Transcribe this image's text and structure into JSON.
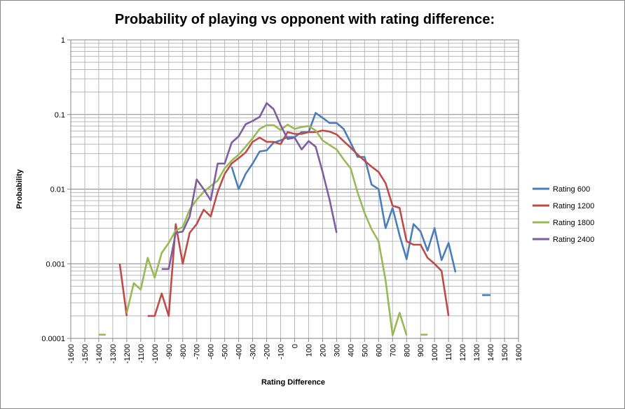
{
  "chart_data": {
    "type": "line",
    "title": "Probability of playing vs opponent with rating difference:",
    "xlabel": "Rating Difference",
    "ylabel": "Probability",
    "y_scale": "log",
    "ylim": [
      0.0001,
      1
    ],
    "xlim": [
      -1600,
      1600
    ],
    "x_ticks": [
      -1600,
      -1500,
      -1400,
      -1300,
      -1200,
      -1100,
      -1000,
      -900,
      -800,
      -700,
      -600,
      -500,
      -400,
      -300,
      -200,
      -100,
      0,
      100,
      200,
      300,
      400,
      500,
      600,
      700,
      800,
      900,
      1000,
      1100,
      1200,
      1300,
      1400,
      1500,
      1600
    ],
    "y_ticks": [
      {
        "value": 1,
        "label": "1"
      },
      {
        "value": 0.1,
        "label": "0.1"
      },
      {
        "value": 0.01,
        "label": "0.01"
      },
      {
        "value": 0.001,
        "label": "0.001"
      },
      {
        "value": 0.0001,
        "label": "0.0001"
      }
    ],
    "grid": true,
    "legend": "right",
    "series": [
      {
        "name": "Rating 600",
        "color": "#4a7ebb",
        "segments": [
          [
            [
              -450,
              0.02
            ],
            [
              -400,
              0.01
            ],
            [
              -350,
              0.016
            ],
            [
              -300,
              0.022
            ],
            [
              -250,
              0.032
            ],
            [
              -200,
              0.033
            ],
            [
              -150,
              0.042
            ],
            [
              -100,
              0.045
            ],
            [
              -50,
              0.05
            ],
            [
              0,
              0.05
            ],
            [
              50,
              0.058
            ],
            [
              100,
              0.058
            ],
            [
              150,
              0.105
            ],
            [
              200,
              0.09
            ],
            [
              250,
              0.077
            ],
            [
              300,
              0.077
            ],
            [
              350,
              0.064
            ],
            [
              400,
              0.042
            ],
            [
              450,
              0.027
            ],
            [
              500,
              0.027
            ],
            [
              550,
              0.0115
            ],
            [
              600,
              0.01
            ],
            [
              650,
              0.003
            ],
            [
              700,
              0.0056
            ],
            [
              750,
              0.0024
            ],
            [
              800,
              0.00115
            ],
            [
              850,
              0.0034
            ],
            [
              900,
              0.0027
            ],
            [
              950,
              0.0015
            ],
            [
              1000,
              0.003
            ],
            [
              1050,
              0.00112
            ],
            [
              1100,
              0.0019
            ],
            [
              1150,
              0.00077
            ]
          ],
          [
            [
              1340,
              0.00038
            ],
            [
              1400,
              0.00038
            ]
          ]
        ]
      },
      {
        "name": "Rating 1200",
        "color": "#be4b48",
        "segments": [
          [
            [
              -1250,
              0.001
            ],
            [
              -1200,
              0.0002
            ]
          ],
          [
            [
              -1050,
              0.0002
            ],
            [
              -1000,
              0.0002
            ],
            [
              -950,
              0.0004
            ],
            [
              -900,
              0.0002
            ],
            [
              -850,
              0.0034
            ],
            [
              -800,
              0.001
            ],
            [
              -750,
              0.0026
            ],
            [
              -700,
              0.0034
            ],
            [
              -650,
              0.0053
            ],
            [
              -600,
              0.0043
            ],
            [
              -550,
              0.0092
            ],
            [
              -500,
              0.016
            ],
            [
              -450,
              0.022
            ],
            [
              -400,
              0.026
            ],
            [
              -350,
              0.031
            ],
            [
              -300,
              0.043
            ],
            [
              -250,
              0.049
            ],
            [
              -200,
              0.043
            ],
            [
              -150,
              0.043
            ],
            [
              -100,
              0.04
            ],
            [
              -50,
              0.058
            ],
            [
              0,
              0.055
            ],
            [
              50,
              0.055
            ],
            [
              100,
              0.058
            ],
            [
              150,
              0.058
            ],
            [
              200,
              0.061
            ],
            [
              250,
              0.059
            ],
            [
              300,
              0.054
            ],
            [
              350,
              0.044
            ],
            [
              400,
              0.036
            ],
            [
              450,
              0.029
            ],
            [
              500,
              0.024
            ],
            [
              550,
              0.02
            ],
            [
              600,
              0.017
            ],
            [
              650,
              0.012
            ],
            [
              700,
              0.006
            ],
            [
              750,
              0.0056
            ],
            [
              800,
              0.002
            ],
            [
              850,
              0.0018
            ],
            [
              900,
              0.0018
            ],
            [
              950,
              0.0012
            ],
            [
              1000,
              0.001
            ],
            [
              1050,
              0.0008
            ],
            [
              1100,
              0.0002
            ]
          ]
        ]
      },
      {
        "name": "Rating 1800",
        "color": "#98b954",
        "segments": [
          [
            [
              -1400,
              0.000112
            ],
            [
              -1350,
              0.000112
            ]
          ],
          [
            [
              -1200,
              0.00022
            ],
            [
              -1150,
              0.00055
            ],
            [
              -1100,
              0.00045
            ],
            [
              -1050,
              0.0012
            ],
            [
              -1000,
              0.00065
            ],
            [
              -950,
              0.0014
            ],
            [
              -900,
              0.0019
            ],
            [
              -850,
              0.0028
            ],
            [
              -800,
              0.0031
            ],
            [
              -750,
              0.0053
            ],
            [
              -700,
              0.0072
            ],
            [
              -650,
              0.0092
            ],
            [
              -600,
              0.011
            ],
            [
              -550,
              0.013
            ],
            [
              -500,
              0.019
            ],
            [
              -450,
              0.024
            ],
            [
              -400,
              0.029
            ],
            [
              -350,
              0.037
            ],
            [
              -300,
              0.048
            ],
            [
              -250,
              0.064
            ],
            [
              -200,
              0.072
            ],
            [
              -150,
              0.072
            ],
            [
              -100,
              0.062
            ],
            [
              -50,
              0.073
            ],
            [
              0,
              0.064
            ],
            [
              50,
              0.068
            ],
            [
              100,
              0.07
            ],
            [
              150,
              0.061
            ],
            [
              200,
              0.045
            ],
            [
              250,
              0.039
            ],
            [
              300,
              0.034
            ],
            [
              350,
              0.025
            ],
            [
              400,
              0.019
            ],
            [
              450,
              0.009
            ],
            [
              500,
              0.0048
            ],
            [
              550,
              0.0029
            ],
            [
              600,
              0.002
            ],
            [
              650,
              0.0006
            ],
            [
              700,
              0.00011
            ],
            [
              750,
              0.00022
            ],
            [
              800,
              0.00011
            ]
          ],
          [
            [
              900,
              0.000112
            ],
            [
              950,
              0.000112
            ]
          ]
        ]
      },
      {
        "name": "Rating 2400",
        "color": "#7d5fa0",
        "segments": [
          [
            [
              -950,
              0.00085
            ],
            [
              -900,
              0.00085
            ],
            [
              -850,
              0.0026
            ],
            [
              -800,
              0.0027
            ],
            [
              -750,
              0.0043
            ],
            [
              -700,
              0.0135
            ],
            [
              -650,
              0.01
            ],
            [
              -600,
              0.0071
            ],
            [
              -550,
              0.022
            ],
            [
              -500,
              0.022
            ],
            [
              -450,
              0.042
            ],
            [
              -400,
              0.051
            ],
            [
              -350,
              0.074
            ],
            [
              -300,
              0.082
            ],
            [
              -250,
              0.093
            ],
            [
              -200,
              0.142
            ],
            [
              -150,
              0.118
            ],
            [
              -100,
              0.072
            ],
            [
              -50,
              0.047
            ],
            [
              0,
              0.049
            ],
            [
              50,
              0.034
            ],
            [
              100,
              0.044
            ],
            [
              150,
              0.037
            ],
            [
              200,
              0.017
            ],
            [
              250,
              0.0072
            ],
            [
              300,
              0.0026
            ]
          ]
        ]
      }
    ]
  }
}
